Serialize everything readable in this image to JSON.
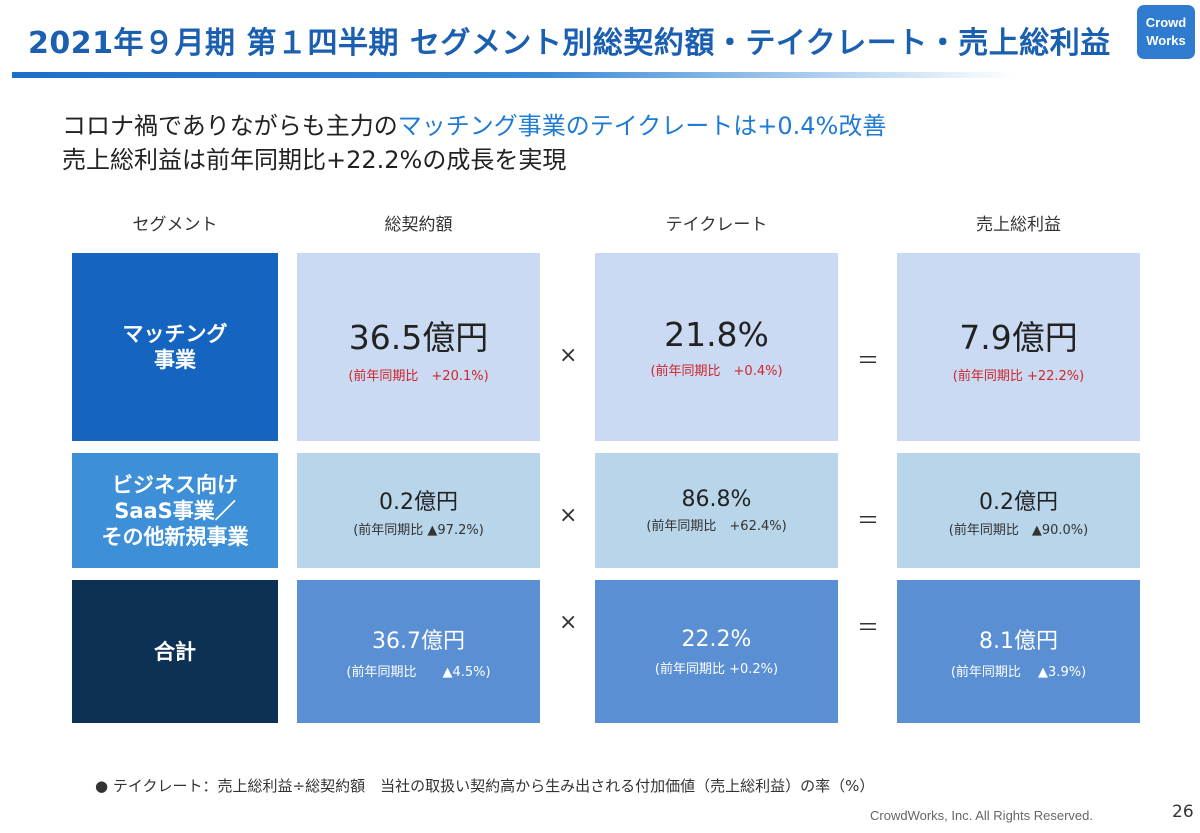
{
  "header": {
    "title": "2021年９月期 第１四半期 セグメント別総契約額・テイクレート・売上総利益",
    "logo_line1": "Crowd",
    "logo_line2": "Works"
  },
  "lead": {
    "line1_prefix": "コロナ禍でありながらも主力の",
    "line1_highlight": "マッチング事業のテイクレートは+0.4%改善",
    "line2": "売上総利益は前年同期比+22.2%の成長を実現"
  },
  "columns": [
    "セグメント",
    "総契約額",
    "テイクレート",
    "売上総利益"
  ],
  "operators": {
    "times": "×",
    "equals": "＝"
  },
  "rows": [
    {
      "segment": "マッチング\n事業",
      "gross": {
        "value": "36.5億円",
        "yoy": "(前年同期比　+20.1%)"
      },
      "rate": {
        "value": "21.8%",
        "yoy": "(前年同期比　+0.4%)"
      },
      "profit": {
        "value": "7.9億円",
        "yoy": "(前年同期比 +22.2%)"
      }
    },
    {
      "segment": "ビジネス向け\nSaaS事業／\nその他新規事業",
      "gross": {
        "value": "0.2億円",
        "yoy": "(前年同期比 ▲97.2%)"
      },
      "rate": {
        "value": "86.8%",
        "yoy": "(前年同期比　+62.4%)"
      },
      "profit": {
        "value": "0.2億円",
        "yoy": "(前年同期比　▲90.0%)"
      }
    },
    {
      "segment": "合計",
      "gross": {
        "value": "36.7億円",
        "yoy": "(前年同期比　　▲4.5%)"
      },
      "rate": {
        "value": "22.2%",
        "yoy": "(前年同期比 +0.2%)"
      },
      "profit": {
        "value": "8.1億円",
        "yoy": "(前年同期比　 ▲3.9%)"
      }
    }
  ],
  "footnote": "●  テイクレート：売上総利益÷総契約額　当社の取扱い契約高から生み出される付加価値（売上総利益）の率（%）",
  "copyright": "CrowdWorks, Inc. All Rights Reserved.",
  "page_number": "26",
  "colors": {
    "title": "#1b5fb0",
    "seg_matching": "#1565c0",
    "seg_saas": "#3d8fd8",
    "seg_total": "#0d3154",
    "cell_light": "#c9daf2",
    "cell_mid": "#b8d5ea",
    "cell_dark": "#5a8fd4",
    "yoy_red": "#d0262b"
  }
}
